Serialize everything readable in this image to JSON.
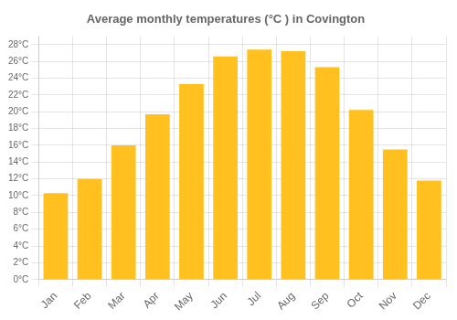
{
  "chart_data": {
    "type": "bar",
    "title": "Average monthly temperatures (°C ) in Covington",
    "categories": [
      "Jan",
      "Feb",
      "Mar",
      "Apr",
      "May",
      "Jun",
      "Jul",
      "Aug",
      "Sep",
      "Oct",
      "Nov",
      "Dec"
    ],
    "values": [
      10.3,
      12.0,
      16.0,
      19.7,
      23.3,
      26.6,
      27.4,
      27.2,
      25.3,
      20.2,
      15.5,
      11.8
    ],
    "color": "#FFC020",
    "ylim": [
      0,
      29
    ],
    "yticks": [
      {
        "value": 0,
        "label": "0°C"
      },
      {
        "value": 2,
        "label": "2°C"
      },
      {
        "value": 4,
        "label": "4°C"
      },
      {
        "value": 6,
        "label": "6°C"
      },
      {
        "value": 8,
        "label": "8°C"
      },
      {
        "value": 10,
        "label": "10°C"
      },
      {
        "value": 12,
        "label": "12°C"
      },
      {
        "value": 14,
        "label": "14°C"
      },
      {
        "value": 16,
        "label": "16°C"
      },
      {
        "value": 18,
        "label": "18°C"
      },
      {
        "value": 20,
        "label": "20°C"
      },
      {
        "value": 22,
        "label": "22°C"
      },
      {
        "value": 24,
        "label": "24°C"
      },
      {
        "value": 26,
        "label": "26°C"
      },
      {
        "value": 28,
        "label": "28°C"
      }
    ],
    "grid": true
  }
}
